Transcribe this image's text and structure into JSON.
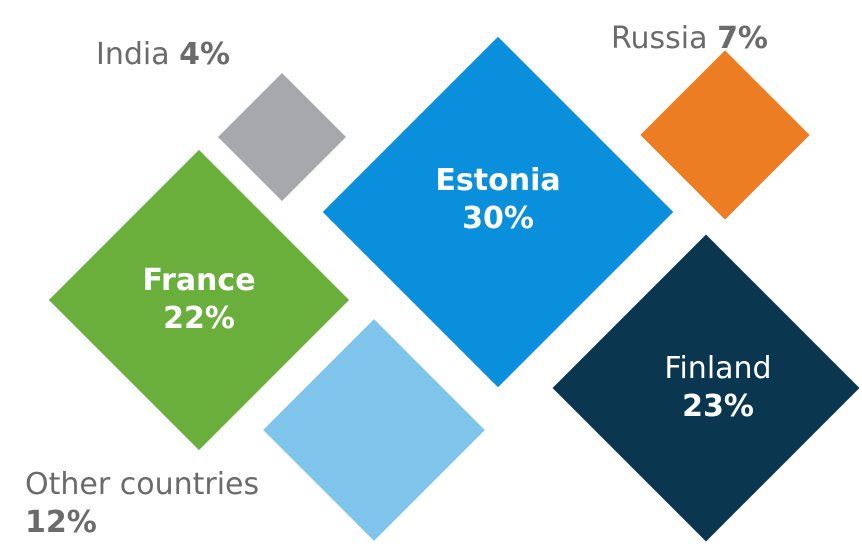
{
  "chart_data": {
    "type": "diamond",
    "categories": [
      "Estonia",
      "Finland",
      "France",
      "Other countries",
      "Russia",
      "India"
    ],
    "values": [
      30,
      23,
      22,
      12,
      7,
      4
    ],
    "value_labels": [
      "30%",
      "23%",
      "22%",
      "12%",
      "7%",
      "4%"
    ],
    "colors": [
      "#0a8fdc",
      "#0b3650",
      "#6aaf3c",
      "#80c5ec",
      "#ec7d22",
      "#a7a8ac"
    ]
  }
}
